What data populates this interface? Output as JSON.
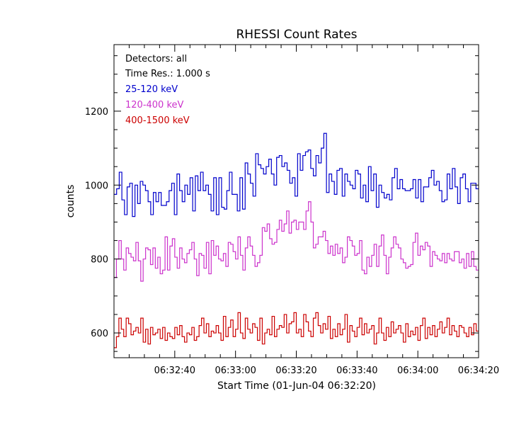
{
  "chart_data": {
    "type": "line",
    "title": "RHESSI Count Rates",
    "xlabel": "Start Time (01-Jun-04 06:32:20)",
    "ylabel": "counts",
    "annotations": [
      {
        "text": "Detectors: all",
        "color": "#000000"
      },
      {
        "text": "Time Res.: 1.000 s",
        "color": "#000000"
      }
    ],
    "x_unit": "seconds after 06:32:20",
    "xlim": [
      0,
      120
    ],
    "ylim": [
      533,
      1380
    ],
    "x_ticks": [
      {
        "value": 20,
        "label": "06:32:40"
      },
      {
        "value": 40,
        "label": "06:33:00"
      },
      {
        "value": 60,
        "label": "06:33:20"
      },
      {
        "value": 80,
        "label": "06:33:40"
      },
      {
        "value": 100,
        "label": "06:34:00"
      },
      {
        "value": 120,
        "label": "06:34:20"
      }
    ],
    "y_ticks": [
      {
        "value": 600,
        "label": "600"
      },
      {
        "value": 800,
        "label": "800"
      },
      {
        "value": 1000,
        "label": "1000"
      },
      {
        "value": 1200,
        "label": "1200"
      }
    ],
    "grid": false,
    "series": [
      {
        "name": "25-120 keV",
        "color": "#0000cc",
        "values": [
          975,
          990,
          1035,
          960,
          920,
          995,
          1005,
          915,
          1000,
          950,
          1010,
          1000,
          985,
          955,
          920,
          980,
          955,
          980,
          945,
          945,
          955,
          985,
          1005,
          920,
          1030,
          985,
          955,
          1000,
          975,
          1020,
          930,
          1025,
          985,
          1035,
          985,
          1000,
          975,
          930,
          1020,
          920,
          1020,
          940,
          935,
          985,
          1035,
          975,
          975,
          930,
          1020,
          935,
          1060,
          1030,
          1005,
          970,
          1085,
          1055,
          1045,
          1030,
          1050,
          1070,
          1030,
          1000,
          1075,
          1080,
          1050,
          1060,
          1040,
          1005,
          1020,
          970,
          1085,
          1040,
          1080,
          1090,
          1095,
          1045,
          1025,
          1080,
          1060,
          1100,
          1140,
          980,
          1030,
          1010,
          975,
          1040,
          1045,
          970,
          1030,
          1010,
          1000,
          990,
          1040,
          1030,
          965,
          1000,
          955,
          1050,
          985,
          1030,
          940,
          1000,
          980,
          965,
          975,
          960,
          1020,
          1045,
          990,
          1015,
          990,
          985,
          985,
          990,
          1015,
          965,
          1015,
          955,
          995,
          995,
          1020,
          1040,
          1000,
          1010,
          985,
          955,
          960,
          1030,
          990,
          1045,
          995,
          950,
          1020,
          1030,
          990,
          955,
          1005,
          1005,
          990
        ]
      },
      {
        "name": "120-400 keV",
        "color": "#cc33cc",
        "values": [
          750,
          800,
          850,
          800,
          770,
          830,
          815,
          805,
          795,
          845,
          795,
          740,
          800,
          830,
          825,
          785,
          830,
          775,
          805,
          760,
          770,
          860,
          770,
          835,
          855,
          805,
          775,
          830,
          800,
          790,
          815,
          825,
          845,
          800,
          755,
          815,
          810,
          775,
          845,
          760,
          850,
          810,
          835,
          800,
          795,
          815,
          780,
          845,
          840,
          820,
          800,
          860,
          810,
          770,
          830,
          860,
          835,
          810,
          780,
          790,
          810,
          885,
          875,
          895,
          855,
          840,
          845,
          880,
          905,
          875,
          895,
          930,
          870,
          900,
          905,
          880,
          900,
          900,
          880,
          930,
          955,
          900,
          830,
          840,
          860,
          860,
          875,
          850,
          815,
          835,
          810,
          840,
          815,
          830,
          790,
          805,
          860,
          850,
          835,
          810,
          815,
          850,
          770,
          760,
          805,
          780,
          810,
          840,
          780,
          835,
          865,
          810,
          760,
          805,
          830,
          860,
          840,
          830,
          800,
          790,
          775,
          780,
          785,
          845,
          870,
          810,
          835,
          825,
          845,
          835,
          780,
          820,
          810,
          800,
          795,
          815,
          790,
          815,
          800,
          795,
          820,
          820,
          790,
          800,
          775,
          815,
          780,
          820,
          780,
          770
        ]
      },
      {
        "name": "400-1500 keV",
        "color": "#cc0000",
        "values": [
          560,
          590,
          640,
          610,
          590,
          640,
          625,
          595,
          605,
          615,
          600,
          640,
          575,
          610,
          570,
          615,
          595,
          600,
          610,
          585,
          615,
          580,
          600,
          590,
          585,
          615,
          595,
          620,
          590,
          575,
          600,
          595,
          615,
          580,
          590,
          620,
          640,
          600,
          625,
          590,
          605,
          600,
          620,
          600,
          580,
          645,
          590,
          615,
          635,
          590,
          610,
          655,
          600,
          585,
          640,
          610,
          600,
          625,
          615,
          580,
          640,
          570,
          600,
          610,
          595,
          645,
          590,
          610,
          620,
          615,
          650,
          600,
          625,
          630,
          655,
          600,
          610,
          590,
          650,
          630,
          605,
          590,
          640,
          655,
          620,
          600,
          625,
          610,
          645,
          585,
          610,
          590,
          625,
          595,
          610,
          650,
          575,
          620,
          605,
          590,
          615,
          640,
          595,
          625,
          600,
          610,
          620,
          570,
          600,
          640,
          600,
          580,
          615,
          590,
          630,
          600,
          610,
          620,
          600,
          575,
          625,
          590,
          605,
          595,
          615,
          580,
          620,
          640,
          585,
          615,
          595,
          620,
          590,
          610,
          630,
          600,
          615,
          640,
          595,
          620,
          605,
          590,
          620,
          615,
          600,
          590,
          615,
          595,
          625,
          605
        ]
      }
    ]
  }
}
